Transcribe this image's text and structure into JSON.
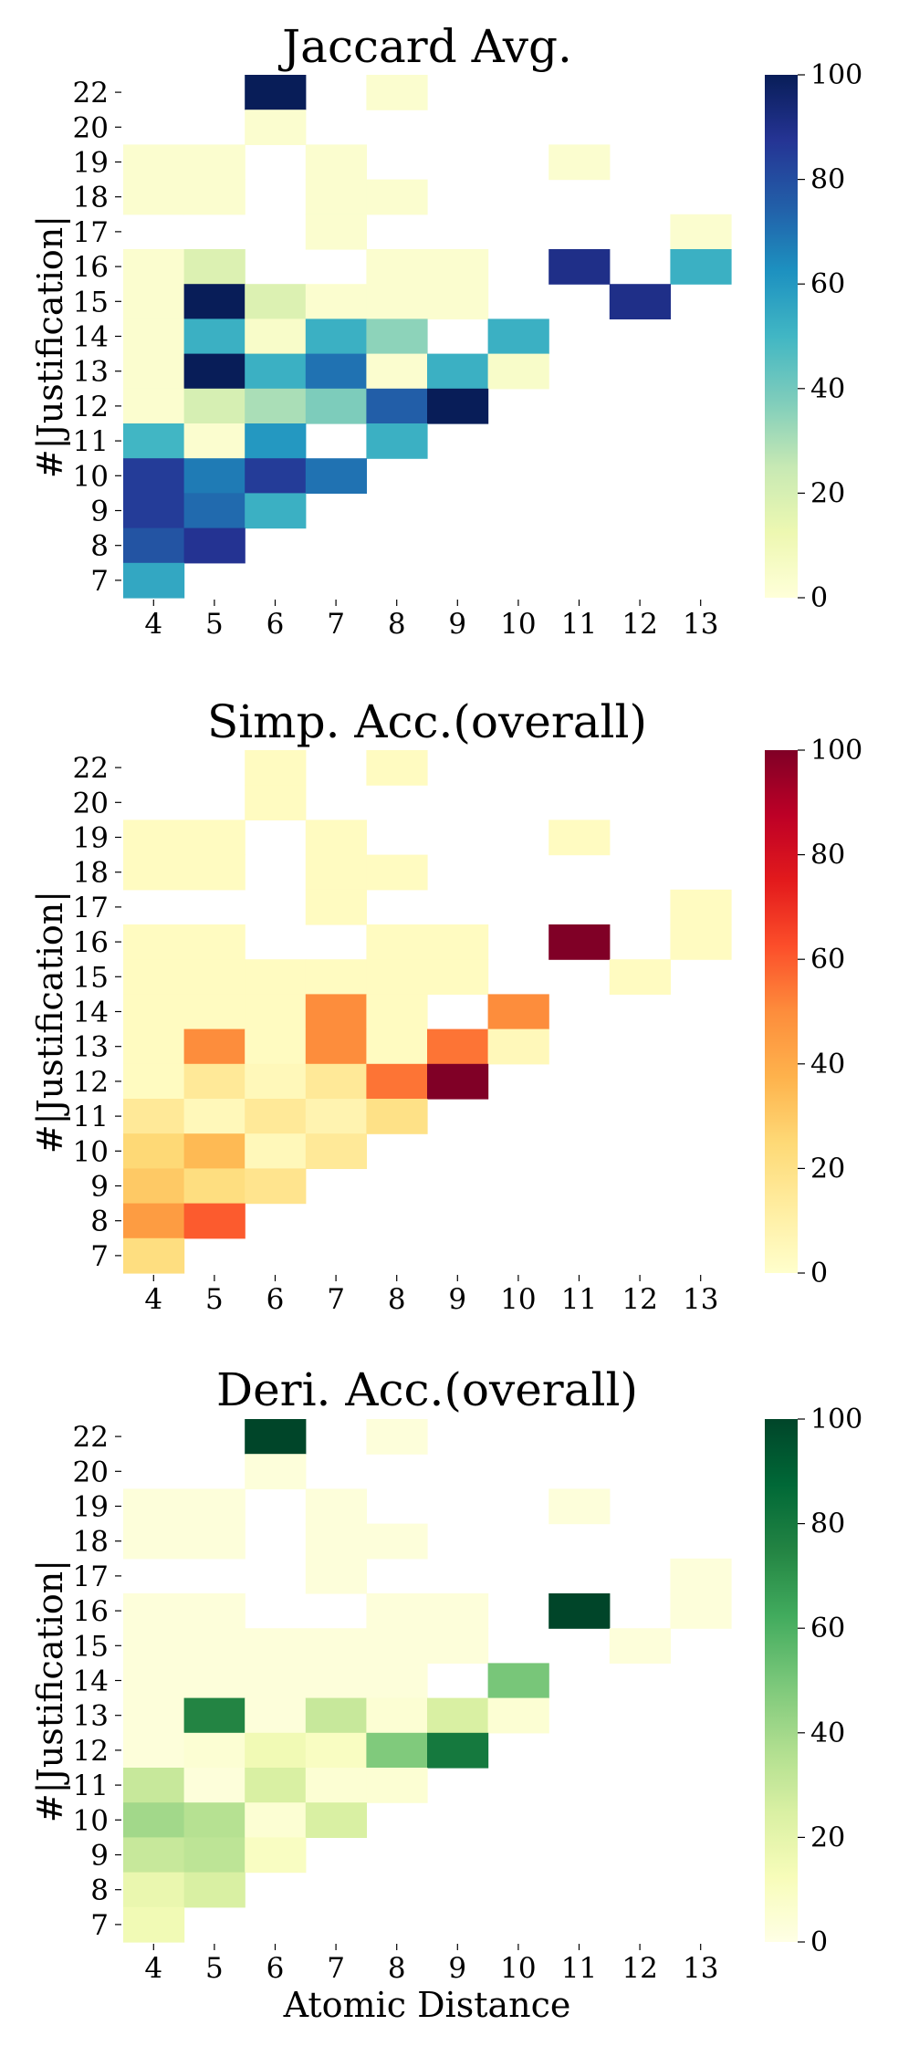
{
  "figure": {
    "xlabel": "Atomic Distance"
  },
  "chart_data": [
    {
      "type": "heatmap",
      "title": "Jaccard Avg.",
      "xlabel": "",
      "ylabel": "#|Justification|",
      "x": [
        "4",
        "5",
        "6",
        "7",
        "8",
        "9",
        "10",
        "11",
        "12",
        "13"
      ],
      "y": [
        "22",
        "20",
        "19",
        "18",
        "17",
        "16",
        "15",
        "14",
        "13",
        "12",
        "11",
        "10",
        "9",
        "8",
        "7"
      ],
      "colormap": "YlGnBu",
      "vmin": 0,
      "vmax": 100,
      "colorbar_ticks": [
        "0",
        "20",
        "40",
        "60",
        "80",
        "100"
      ],
      "values": [
        [
          null,
          null,
          100,
          null,
          3,
          null,
          null,
          null,
          null,
          null
        ],
        [
          null,
          null,
          3,
          null,
          null,
          null,
          null,
          null,
          null,
          null
        ],
        [
          3,
          3,
          null,
          3,
          null,
          null,
          null,
          3,
          null,
          null
        ],
        [
          3,
          3,
          null,
          3,
          3,
          null,
          null,
          null,
          null,
          null
        ],
        [
          null,
          null,
          null,
          3,
          null,
          null,
          null,
          null,
          null,
          3
        ],
        [
          3,
          18,
          null,
          null,
          3,
          3,
          null,
          90,
          null,
          52
        ],
        [
          3,
          100,
          18,
          3,
          3,
          3,
          null,
          null,
          90,
          null
        ],
        [
          3,
          52,
          5,
          52,
          35,
          null,
          52,
          null,
          null,
          null
        ],
        [
          3,
          100,
          52,
          70,
          3,
          52,
          5,
          null,
          null,
          null
        ],
        [
          3,
          20,
          30,
          38,
          75,
          100,
          null,
          null,
          null,
          null
        ],
        [
          50,
          3,
          60,
          null,
          52,
          null,
          null,
          null,
          null,
          null
        ],
        [
          85,
          68,
          85,
          70,
          null,
          null,
          null,
          null,
          null,
          null
        ],
        [
          85,
          72,
          52,
          null,
          null,
          null,
          null,
          null,
          null,
          null
        ],
        [
          78,
          88,
          null,
          null,
          null,
          null,
          null,
          null,
          null,
          null
        ],
        [
          55,
          null,
          null,
          null,
          null,
          null,
          null,
          null,
          null,
          null
        ]
      ]
    },
    {
      "type": "heatmap",
      "title": "Simp. Acc.(overall)",
      "xlabel": "",
      "ylabel": "#|Justification|",
      "x": [
        "4",
        "5",
        "6",
        "7",
        "8",
        "9",
        "10",
        "11",
        "12",
        "13"
      ],
      "y": [
        "22",
        "20",
        "19",
        "18",
        "17",
        "16",
        "15",
        "14",
        "13",
        "12",
        "11",
        "10",
        "9",
        "8",
        "7"
      ],
      "colormap": "YlOrRd",
      "vmin": 0,
      "vmax": 100,
      "colorbar_ticks": [
        "0",
        "20",
        "40",
        "60",
        "80",
        "100"
      ],
      "values": [
        [
          null,
          null,
          3,
          null,
          3,
          null,
          null,
          null,
          null,
          null
        ],
        [
          null,
          null,
          3,
          null,
          null,
          null,
          null,
          null,
          null,
          null
        ],
        [
          3,
          3,
          null,
          3,
          null,
          null,
          null,
          3,
          null,
          null
        ],
        [
          3,
          3,
          null,
          3,
          3,
          null,
          null,
          null,
          null,
          null
        ],
        [
          null,
          null,
          null,
          3,
          null,
          null,
          null,
          null,
          null,
          3
        ],
        [
          3,
          3,
          null,
          null,
          3,
          3,
          null,
          100,
          null,
          3
        ],
        [
          3,
          3,
          3,
          3,
          3,
          3,
          null,
          null,
          3,
          null
        ],
        [
          3,
          3,
          3,
          50,
          3,
          null,
          50,
          null,
          null,
          null
        ],
        [
          3,
          50,
          3,
          50,
          3,
          55,
          5,
          null,
          null,
          null
        ],
        [
          3,
          15,
          5,
          15,
          55,
          100,
          null,
          null,
          null,
          null
        ],
        [
          15,
          5,
          15,
          8,
          20,
          null,
          null,
          null,
          null,
          null
        ],
        [
          25,
          35,
          5,
          15,
          null,
          null,
          null,
          null,
          null,
          null
        ],
        [
          30,
          22,
          18,
          null,
          null,
          null,
          null,
          null,
          null,
          null
        ],
        [
          45,
          60,
          null,
          null,
          null,
          null,
          null,
          null,
          null,
          null
        ],
        [
          22,
          null,
          null,
          null,
          null,
          null,
          null,
          null,
          null,
          null
        ]
      ]
    },
    {
      "type": "heatmap",
      "title": "Deri. Acc.(overall)",
      "xlabel": "Atomic Distance",
      "ylabel": "#|Justification|",
      "x": [
        "4",
        "5",
        "6",
        "7",
        "8",
        "9",
        "10",
        "11",
        "12",
        "13"
      ],
      "y": [
        "22",
        "20",
        "19",
        "18",
        "17",
        "16",
        "15",
        "14",
        "13",
        "12",
        "11",
        "10",
        "9",
        "8",
        "7"
      ],
      "colormap": "YlGn",
      "vmin": 0,
      "vmax": 100,
      "colorbar_ticks": [
        "0",
        "20",
        "40",
        "60",
        "80",
        "100"
      ],
      "values": [
        [
          null,
          null,
          100,
          null,
          3,
          null,
          null,
          null,
          null,
          null
        ],
        [
          null,
          null,
          3,
          null,
          null,
          null,
          null,
          null,
          null,
          null
        ],
        [
          3,
          3,
          null,
          3,
          null,
          null,
          null,
          3,
          null,
          null
        ],
        [
          3,
          3,
          null,
          3,
          3,
          null,
          null,
          null,
          null,
          null
        ],
        [
          null,
          null,
          null,
          3,
          null,
          null,
          null,
          null,
          null,
          3
        ],
        [
          3,
          3,
          null,
          null,
          3,
          3,
          null,
          100,
          null,
          3
        ],
        [
          3,
          3,
          3,
          3,
          3,
          3,
          null,
          null,
          3,
          null
        ],
        [
          3,
          3,
          3,
          3,
          3,
          null,
          50,
          null,
          null,
          null
        ],
        [
          3,
          75,
          3,
          30,
          5,
          25,
          5,
          null,
          null,
          null
        ],
        [
          3,
          5,
          15,
          10,
          48,
          80,
          null,
          null,
          null,
          null
        ],
        [
          30,
          3,
          25,
          5,
          5,
          null,
          null,
          null,
          null,
          null
        ],
        [
          40,
          35,
          5,
          25,
          null,
          null,
          null,
          null,
          null,
          null
        ],
        [
          30,
          33,
          10,
          null,
          null,
          null,
          null,
          null,
          null,
          null
        ],
        [
          18,
          25,
          null,
          null,
          null,
          null,
          null,
          null,
          null,
          null
        ],
        [
          15,
          null,
          null,
          null,
          null,
          null,
          null,
          null,
          null,
          null
        ]
      ]
    }
  ]
}
